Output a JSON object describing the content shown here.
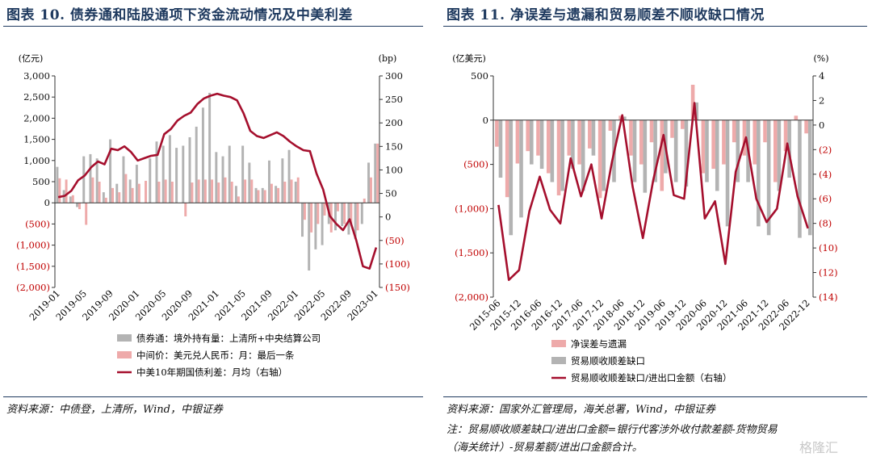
{
  "left": {
    "title": "图表 10. 债券通和陆股通项下资金流动情况及中美利差",
    "source": "资料来源：中债登，上清所，Wind，中银证券",
    "chart_data": {
      "type": "bar",
      "left_unit": "(亿元)",
      "right_unit": "(bp)",
      "left_ticks": [
        "3,000",
        "2,500",
        "2,000",
        "1,500",
        "1,000",
        "500",
        "0",
        "(500)",
        "(1,000)",
        "(1,500)",
        "(2,000)"
      ],
      "left_tick_values": [
        3000,
        2500,
        2000,
        1500,
        1000,
        500,
        0,
        -500,
        -1000,
        -1500,
        -2000
      ],
      "right_ticks": [
        "300",
        "250",
        "200",
        "150",
        "100",
        "50",
        "0",
        "(50)",
        "(100)",
        "(150)"
      ],
      "right_tick_values": [
        300,
        250,
        200,
        150,
        100,
        50,
        0,
        -50,
        -100,
        -150
      ],
      "ylim_left": [
        -2000,
        3000
      ],
      "ylim_right": [
        -150,
        300
      ],
      "x_labels": [
        "2019-01",
        "2019-05",
        "2019-09",
        "2020-01",
        "2020-05",
        "2020-09",
        "2021-01",
        "2021-05",
        "2021-09",
        "2022-01",
        "2022-05",
        "2022-09",
        "2023-01"
      ],
      "months": [
        "2019-01",
        "2019-02",
        "2019-03",
        "2019-04",
        "2019-05",
        "2019-06",
        "2019-07",
        "2019-08",
        "2019-09",
        "2019-10",
        "2019-11",
        "2019-12",
        "2020-01",
        "2020-02",
        "2020-03",
        "2020-04",
        "2020-05",
        "2020-06",
        "2020-07",
        "2020-08",
        "2020-09",
        "2020-10",
        "2020-11",
        "2020-12",
        "2021-01",
        "2021-02",
        "2021-03",
        "2021-04",
        "2021-05",
        "2021-06",
        "2021-07",
        "2021-08",
        "2021-09",
        "2021-10",
        "2021-11",
        "2021-12",
        "2022-01",
        "2022-02",
        "2022-03",
        "2022-04",
        "2022-05",
        "2022-06",
        "2022-07",
        "2022-08",
        "2022-09",
        "2022-10",
        "2022-11",
        "2022-12",
        "2023-01"
      ],
      "series": [
        {
          "name": "债券通：境外持有量：上清所+中央结算公司",
          "color": "#b3b3b3",
          "values": [
            850,
            300,
            150,
            -100,
            1100,
            1150,
            1050,
            250,
            1500,
            450,
            1100,
            550,
            900,
            0,
            1050,
            1450,
            1350,
            1600,
            1300,
            1350,
            1550,
            1800,
            2250,
            2600,
            1200,
            1100,
            1350,
            400,
            1350,
            950,
            350,
            350,
            1000,
            400,
            1050,
            1250,
            500,
            -800,
            -1600,
            -1100,
            -1000,
            -500,
            -650,
            -550,
            -750,
            -850,
            -500,
            950,
            1400
          ]
        },
        {
          "name": "中间价：美元兑人民币：月：最后一条",
          "color": "#eeaaaa",
          "values": [
            580,
            550,
            180,
            -150,
            -520,
            600,
            500,
            120,
            350,
            250,
            680,
            350,
            450,
            520,
            0,
            500,
            550,
            500,
            0,
            -320,
            480,
            550,
            550,
            550,
            480,
            600,
            500,
            150,
            550,
            550,
            300,
            300,
            450,
            350,
            500,
            550,
            600,
            -400,
            -700,
            -500,
            -300,
            -700,
            -200,
            -500,
            -500,
            -650,
            100,
            600,
            1400
          ]
        },
        {
          "name": "中美10年期国债利差：月均（右轴）",
          "color": "#a50f2d",
          "values": [
            42,
            45,
            56,
            78,
            88,
            106,
            118,
            112,
            145,
            142,
            150,
            138,
            120,
            125,
            130,
            132,
            176,
            187,
            205,
            215,
            222,
            240,
            252,
            258,
            262,
            258,
            255,
            248,
            220,
            183,
            172,
            168,
            174,
            180,
            172,
            160,
            150,
            142,
            140,
            92,
            58,
            2,
            -15,
            -28,
            -5,
            -50,
            -105,
            -110,
            -65
          ]
        }
      ]
    },
    "legend": [
      {
        "label": "债券通：境外持有量：上清所+中央结算公司",
        "color": "#b3b3b3"
      },
      {
        "label": "中间价：美元兑人民币：月：最后一条",
        "color": "#eeaaaa"
      },
      {
        "label": "中美10年期国债利差：月均（右轴）",
        "color": "#a50f2d"
      }
    ]
  },
  "right": {
    "title": "图表 11. 净误差与遗漏和贸易顺差不顺收缺口情况",
    "source": "资料来源：国家外汇管理局，海关总署，Wind，中银证券",
    "note_line1": "注：贸易顺收顺差缺口/进出口金额=银行代客涉外收付款差额-货物贸易",
    "note_line2": "（海关统计）-贸易差额/进出口金额合计。",
    "watermark": "格隆汇",
    "chart_data": {
      "type": "bar",
      "left_unit": "(亿美元)",
      "right_unit": "(%)",
      "left_ticks": [
        "500",
        "0",
        "(500)",
        "(1,000)",
        "(1,500)",
        "(2,000)"
      ],
      "left_tick_values": [
        500,
        0,
        -500,
        -1000,
        -1500,
        -2000
      ],
      "right_ticks": [
        "4",
        "2",
        "0",
        "(2)",
        "(4)",
        "(6)",
        "(8)",
        "(10)",
        "(12)",
        "(14)"
      ],
      "right_tick_values": [
        4,
        2,
        0,
        -2,
        -4,
        -6,
        -8,
        -10,
        -12,
        -14
      ],
      "ylim_left": [
        -2000,
        500
      ],
      "ylim_right": [
        -14,
        4
      ],
      "x_labels": [
        "2015-06",
        "2015-12",
        "2016-06",
        "2016-12",
        "2017-06",
        "2017-12",
        "2018-06",
        "2018-12",
        "2019-06",
        "2019-12",
        "2020-06",
        "2020-12",
        "2021-06",
        "2021-12",
        "2022-06",
        "2022-12"
      ],
      "quarters": [
        "2015-06",
        "2015-09",
        "2015-12",
        "2016-03",
        "2016-06",
        "2016-09",
        "2016-12",
        "2017-03",
        "2017-06",
        "2017-09",
        "2017-12",
        "2018-03",
        "2018-06",
        "2018-09",
        "2018-12",
        "2019-03",
        "2019-06",
        "2019-09",
        "2019-12",
        "2020-03",
        "2020-06",
        "2020-09",
        "2020-12",
        "2021-03",
        "2021-06",
        "2021-09",
        "2021-12",
        "2022-03",
        "2022-06",
        "2022-09",
        "2022-12"
      ],
      "series": [
        {
          "name": "净误差与遗漏",
          "color": "#eeaaaa",
          "values": [
            -300,
            -870,
            -490,
            -350,
            -400,
            -600,
            -850,
            -400,
            -500,
            -320,
            -880,
            -120,
            50,
            -400,
            -500,
            -250,
            -800,
            -200,
            -100,
            400,
            -600,
            -550,
            -500,
            -250,
            -400,
            -500,
            -250,
            -700,
            -350,
            50,
            -150
          ]
        },
        {
          "name": "贸易顺收顺差缺口",
          "color": "#b3b3b3",
          "values": [
            -650,
            -1300,
            -1100,
            -500,
            -550,
            -700,
            -800,
            -550,
            -800,
            -400,
            -800,
            -700,
            40,
            -700,
            -820,
            -700,
            -600,
            -700,
            -750,
            200,
            -700,
            -800,
            -1200,
            -700,
            -700,
            -1200,
            -1300,
            -800,
            -650,
            -1330,
            -1300
          ]
        },
        {
          "name": "贸易顺收顺差缺口/进出口金额（右轴）",
          "color": "#a50f2d",
          "values": [
            -6.5,
            -12.6,
            -11.8,
            -7.0,
            -4.2,
            -6.9,
            -8.0,
            -2.7,
            -5.8,
            -3.2,
            -7.6,
            -3.0,
            0.8,
            -5.0,
            -9.2,
            -4.5,
            -0.8,
            -5.7,
            -6.0,
            1.8,
            -7.6,
            -6.2,
            -11.3,
            -3.8,
            -1.0,
            -6.0,
            -7.9,
            -6.8,
            -1.5,
            -5.8,
            -8.4
          ]
        }
      ]
    },
    "legend": [
      {
        "label": "净误差与遗漏",
        "color": "#eeaaaa"
      },
      {
        "label": "贸易顺收顺差缺口",
        "color": "#b3b3b3"
      },
      {
        "label": "贸易顺收顺差缺口/进出口金额（右轴）",
        "color": "#a50f2d"
      }
    ]
  }
}
